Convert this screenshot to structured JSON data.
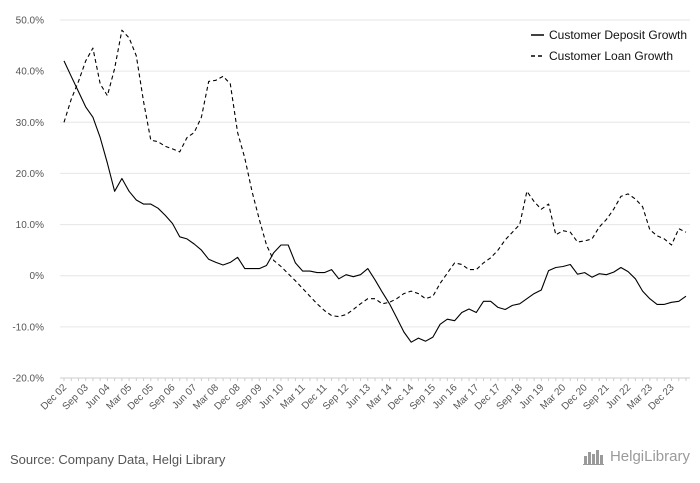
{
  "chart_data": {
    "type": "line",
    "title": "",
    "xlabel": "",
    "ylabel": "",
    "ylim": [
      -0.2,
      0.5
    ],
    "yticks": [
      "50.0%",
      "40.0%",
      "30.0%",
      "20.0%",
      "10.0%",
      "0%",
      "-10.0%",
      "-20.0%"
    ],
    "xticks": [
      "Dec 02",
      "Sep 03",
      "Jun 04",
      "Mar 05",
      "Dec 05",
      "Sep 06",
      "Jun 07",
      "Mar 08",
      "Dec 08",
      "Sep 09",
      "Jun 10",
      "Mar 11",
      "Dec 11",
      "Sep 12",
      "Jun 13",
      "Mar 14",
      "Dec 14",
      "Sep 15",
      "Jun 16",
      "Mar 17",
      "Dec 17",
      "Sep 18",
      "Jun 19",
      "Mar 20",
      "Dec 20",
      "Sep 21",
      "Jun 22",
      "Mar 23",
      "Dec 23"
    ],
    "grid": true,
    "legend_position": "top-right",
    "x_start": "Dec 02",
    "x_step": "quarter",
    "series": [
      {
        "name": "Customer Deposit Growth",
        "style": "solid",
        "color": "#000000",
        "values": [
          0.42,
          0.39,
          0.36,
          0.33,
          0.31,
          0.27,
          0.22,
          0.165,
          0.19,
          0.165,
          0.148,
          0.14,
          0.14,
          0.132,
          0.118,
          0.102,
          0.076,
          0.072,
          0.062,
          0.05,
          0.032,
          0.026,
          0.021,
          0.026,
          0.036,
          0.014,
          0.014,
          0.014,
          0.02,
          0.045,
          0.06,
          0.06,
          0.025,
          0.009,
          0.009,
          0.006,
          0.006,
          0.012,
          -0.006,
          0.002,
          -0.002,
          0.002,
          0.014,
          -0.008,
          -0.032,
          -0.055,
          -0.082,
          -0.11,
          -0.13,
          -0.122,
          -0.128,
          -0.12,
          -0.095,
          -0.085,
          -0.088,
          -0.072,
          -0.065,
          -0.072,
          -0.05,
          -0.05,
          -0.062,
          -0.066,
          -0.058,
          -0.055,
          -0.045,
          -0.035,
          -0.028,
          0.01,
          0.016,
          0.018,
          0.022,
          0.003,
          0.006,
          -0.003,
          0.004,
          0.002,
          0.007,
          0.016,
          0.008,
          -0.006,
          -0.03,
          -0.045,
          -0.056,
          -0.056,
          -0.052,
          -0.05,
          -0.04
        ]
      },
      {
        "name": "Customer Loan Growth",
        "style": "dashed",
        "color": "#000000",
        "values": [
          0.3,
          0.345,
          0.38,
          0.42,
          0.445,
          0.375,
          0.352,
          0.405,
          0.48,
          0.465,
          0.43,
          0.34,
          0.265,
          0.262,
          0.253,
          0.248,
          0.242,
          0.27,
          0.28,
          0.31,
          0.38,
          0.382,
          0.39,
          0.375,
          0.28,
          0.23,
          0.165,
          0.11,
          0.06,
          0.03,
          0.018,
          0.004,
          -0.01,
          -0.025,
          -0.04,
          -0.055,
          -0.068,
          -0.078,
          -0.08,
          -0.076,
          -0.066,
          -0.055,
          -0.045,
          -0.045,
          -0.055,
          -0.052,
          -0.045,
          -0.035,
          -0.03,
          -0.035,
          -0.045,
          -0.04,
          -0.015,
          0.005,
          0.025,
          0.022,
          0.012,
          0.012,
          0.025,
          0.035,
          0.05,
          0.07,
          0.085,
          0.1,
          0.165,
          0.145,
          0.13,
          0.14,
          0.08,
          0.088,
          0.085,
          0.066,
          0.068,
          0.072,
          0.095,
          0.11,
          0.13,
          0.155,
          0.16,
          0.15,
          0.135,
          0.09,
          0.078,
          0.072,
          0.06,
          0.092,
          0.085
        ]
      }
    ]
  },
  "footer": {
    "source": "Source: Company Data, Helgi Library",
    "brand": "HelgiLibrary",
    "brand_icon": "city-skyline-icon"
  },
  "colors": {
    "grid": "#e6e6e6",
    "axis_text": "#555555",
    "brand": "#9a9a9a"
  }
}
